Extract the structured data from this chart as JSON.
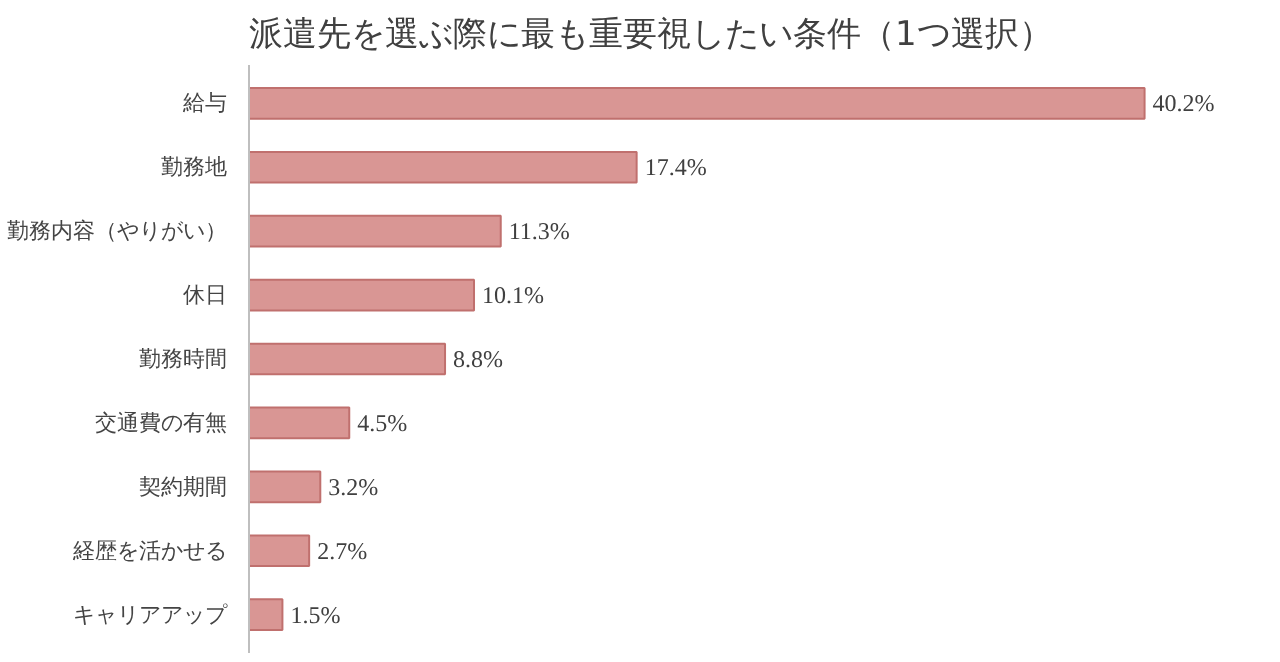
{
  "chart_data": {
    "type": "bar",
    "orientation": "horizontal",
    "title": "派遣先を選ぶ際に最も重要視したい条件（1つ選択）",
    "categories": [
      "給与",
      "勤務地",
      "勤務内容（やりがい）",
      "休日",
      "勤務時間",
      "交通費の有無",
      "契約期間",
      "経歴を活かせる",
      "キャリアアップ"
    ],
    "values": [
      40.2,
      17.4,
      11.3,
      10.1,
      8.8,
      4.5,
      3.2,
      2.7,
      1.5
    ],
    "value_labels": [
      "40.2%",
      "17.4%",
      "11.3%",
      "10.1%",
      "8.8%",
      "4.5%",
      "3.2%",
      "2.7%",
      "1.5%"
    ],
    "color": "#d99694",
    "grid": false
  }
}
